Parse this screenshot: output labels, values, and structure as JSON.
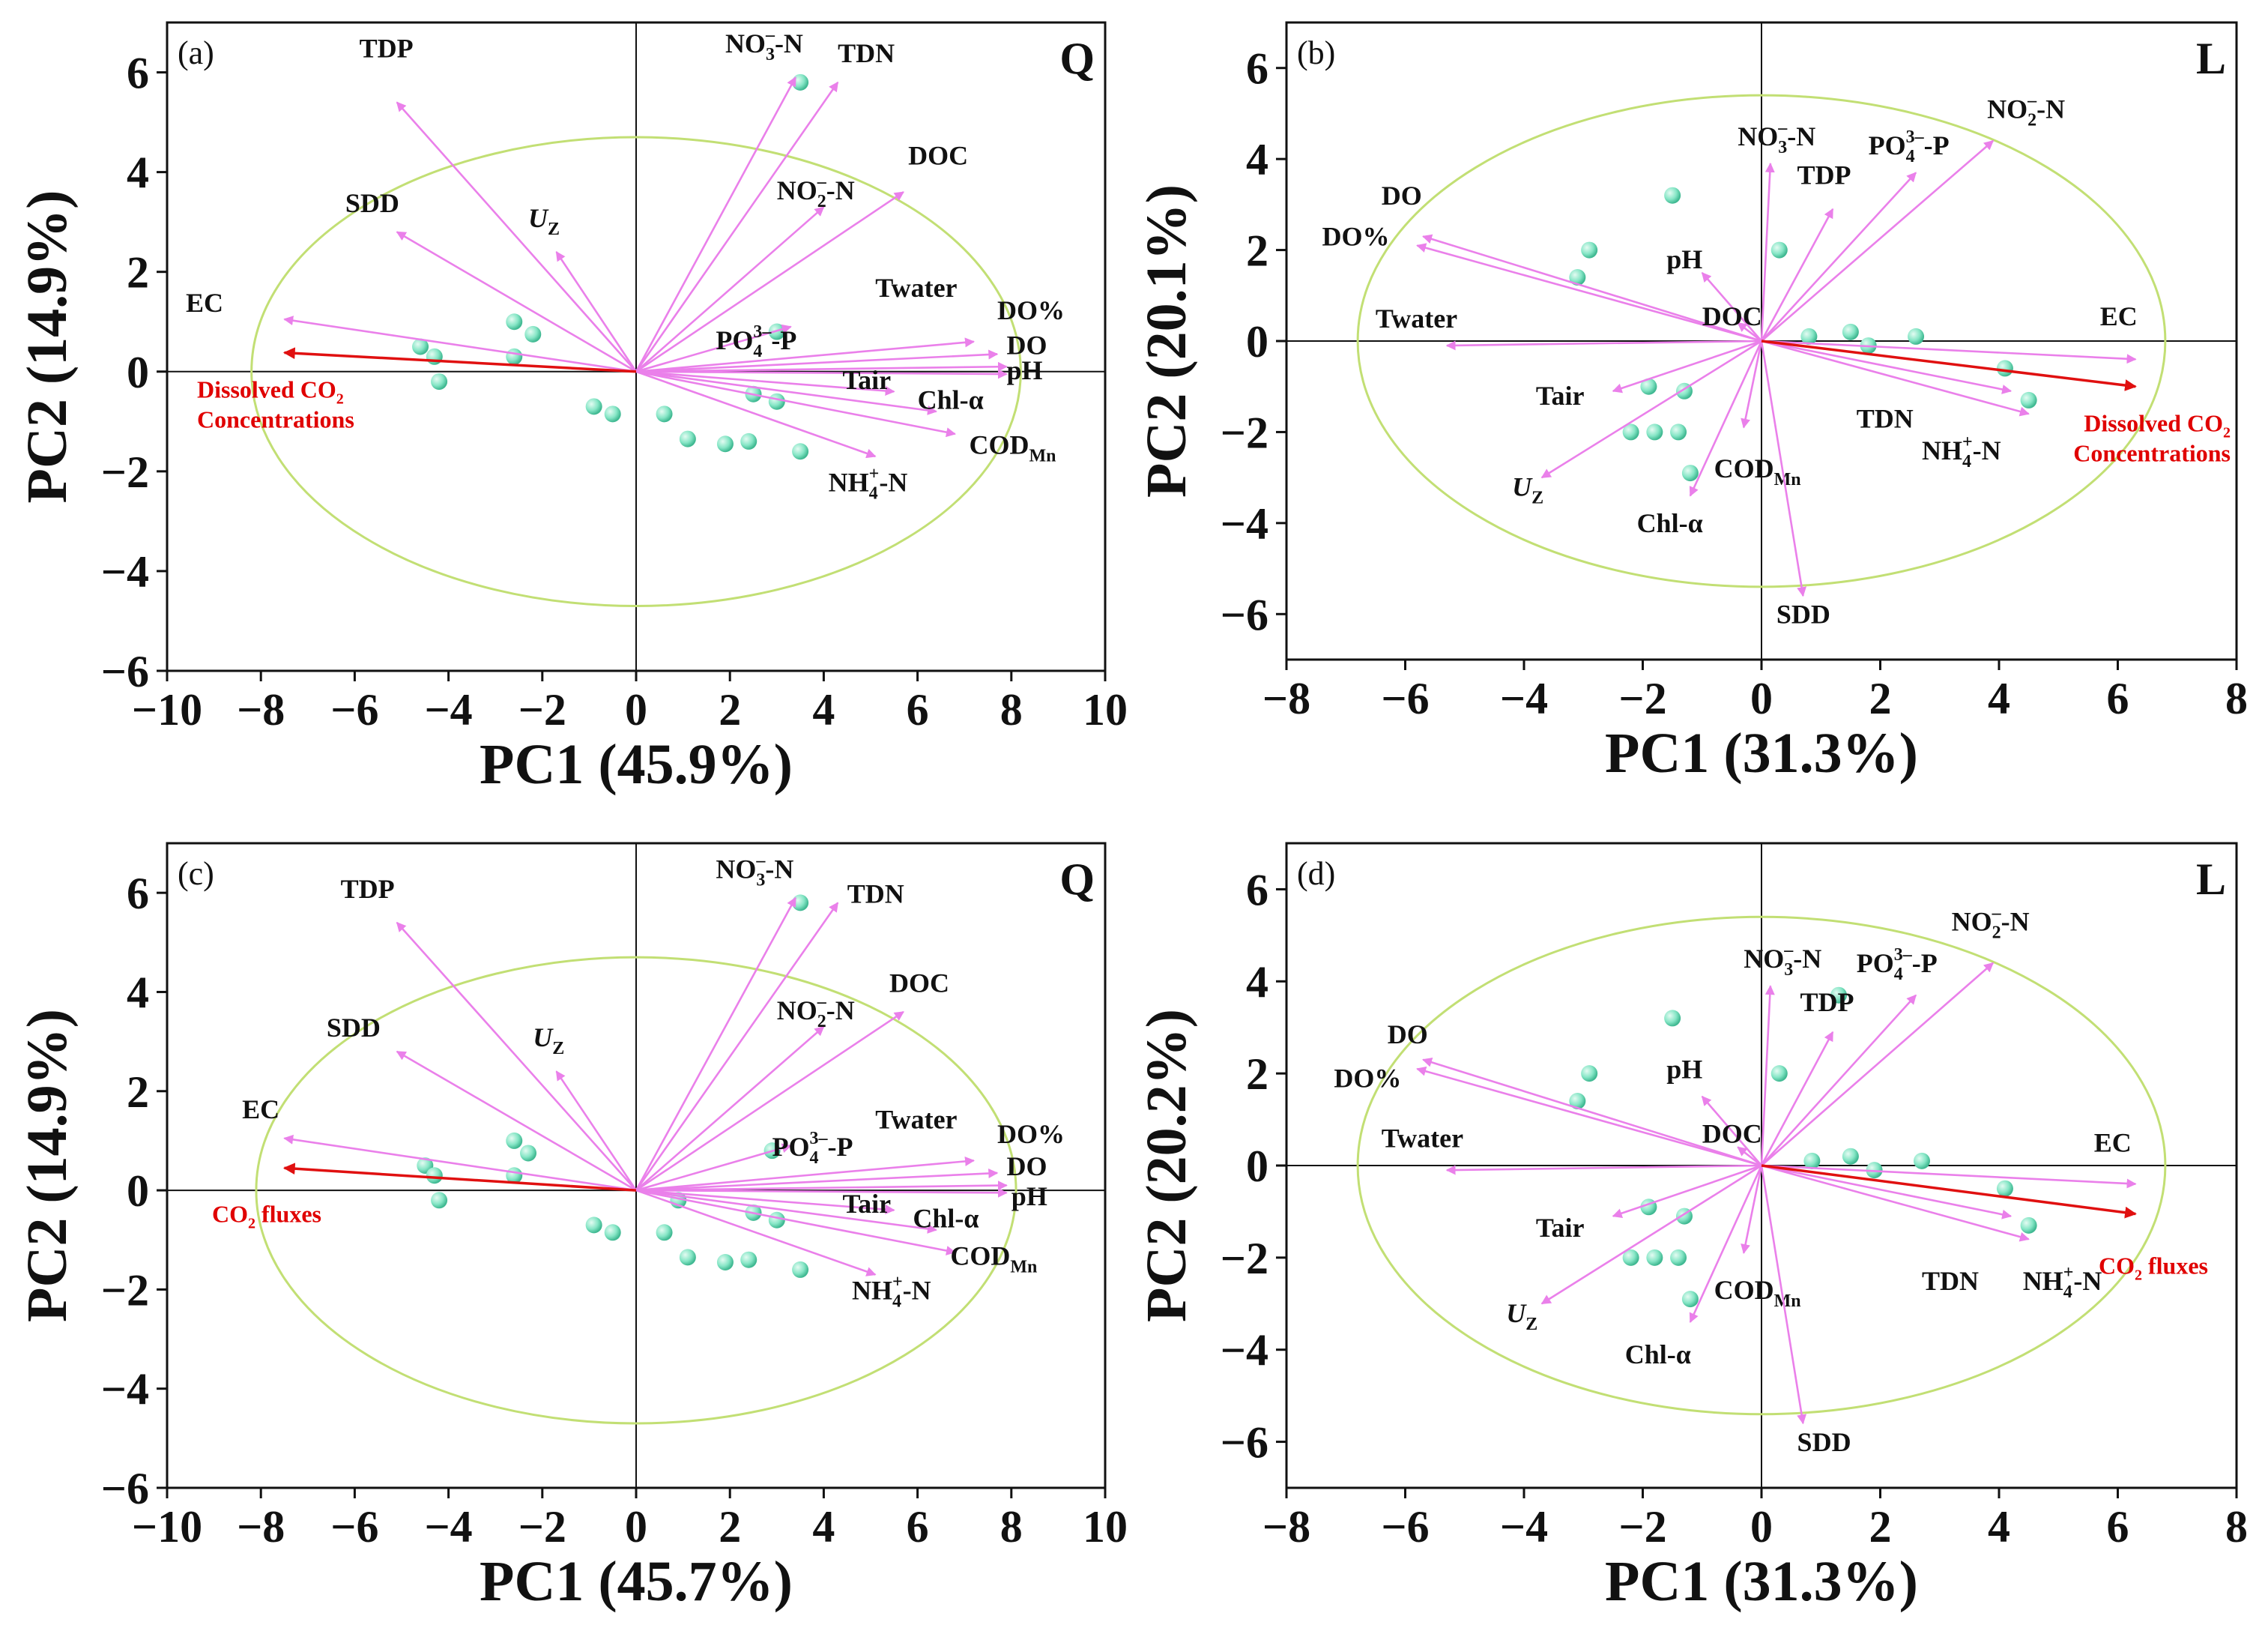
{
  "colors": {
    "arrow": "#ea80ea",
    "target": "#e01010",
    "ellipse": "#c2df74",
    "point": "#86e6c6",
    "axis": "#111111"
  },
  "chart_data": [
    {
      "type": "scatter",
      "panel": "(a)",
      "site": "Q",
      "xlabel": "PC1 (45.9%)",
      "ylabel": "PC2 (14.9%)",
      "xlim": [
        -10,
        10
      ],
      "ylim": [
        -6,
        7
      ],
      "xticks": [
        -10,
        -8,
        -6,
        -4,
        -2,
        0,
        2,
        4,
        6,
        8,
        10
      ],
      "yticks": [
        -6,
        -4,
        -2,
        0,
        2,
        4,
        6
      ],
      "ellipse": {
        "cx": 0,
        "cy": 0,
        "rx": 8.2,
        "ry": 4.7
      },
      "points": [
        [
          -4.6,
          0.5
        ],
        [
          -4.3,
          0.3
        ],
        [
          -4.2,
          -0.2
        ],
        [
          -2.6,
          0.3
        ],
        [
          -2.6,
          1.0
        ],
        [
          -2.2,
          0.75
        ],
        [
          -0.9,
          -0.7
        ],
        [
          -0.5,
          -0.85
        ],
        [
          0.6,
          -0.85
        ],
        [
          1.1,
          -1.35
        ],
        [
          1.9,
          -1.45
        ],
        [
          2.4,
          -1.4
        ],
        [
          3.5,
          -1.6
        ],
        [
          2.5,
          -0.45
        ],
        [
          3.0,
          -0.6
        ],
        [
          3.0,
          0.8
        ],
        [
          3.5,
          5.8
        ]
      ],
      "variables": [
        {
          "name": "TDP",
          "x": -5.1,
          "y": 5.4,
          "lx": -5.9,
          "ly": 6.3
        },
        {
          "name": "SDD",
          "x": -5.1,
          "y": 2.8,
          "lx": -6.2,
          "ly": 3.2
        },
        {
          "name": "Uz",
          "x": -1.7,
          "y": 2.4,
          "lx": -2.3,
          "ly": 2.9
        },
        {
          "name": "EC",
          "x": -7.5,
          "y": 1.05,
          "lx": -9.6,
          "ly": 1.2
        },
        {
          "name": "NO3–N",
          "x": 3.4,
          "y": 5.9,
          "lx": 1.9,
          "ly": 6.4
        },
        {
          "name": "TDN",
          "x": 4.3,
          "y": 5.8,
          "lx": 4.3,
          "ly": 6.2
        },
        {
          "name": "DOC",
          "x": 5.7,
          "y": 3.6,
          "lx": 5.8,
          "ly": 4.15
        },
        {
          "name": "NO2–N",
          "x": 4.0,
          "y": 3.3,
          "lx": 3.0,
          "ly": 3.45
        },
        {
          "name": "Twater",
          "x": 7.2,
          "y": 0.6,
          "lx": 5.1,
          "ly": 1.5
        },
        {
          "name": "DO%",
          "x": 7.7,
          "y": 0.35,
          "lx": 7.7,
          "ly": 1.05
        },
        {
          "name": "DO",
          "x": 7.9,
          "y": 0.1,
          "lx": 7.9,
          "ly": 0.35
        },
        {
          "name": "pH",
          "x": 7.9,
          "y": -0.05,
          "lx": 7.9,
          "ly": -0.15
        },
        {
          "name": "PO4–P",
          "x": 3.3,
          "y": 0.9,
          "lx": 1.7,
          "ly": 0.45
        },
        {
          "name": "Tair",
          "x": 5.5,
          "y": -0.4,
          "lx": 4.4,
          "ly": -0.35
        },
        {
          "name": "Chl-α",
          "x": 6.4,
          "y": -0.8,
          "lx": 6.0,
          "ly": -0.75
        },
        {
          "name": "CODMn",
          "x": 6.8,
          "y": -1.25,
          "lx": 7.1,
          "ly": -1.65
        },
        {
          "name": "NH4–N",
          "x": 5.1,
          "y": -1.7,
          "lx": 4.1,
          "ly": -2.4
        }
      ],
      "target": {
        "x": -7.5,
        "y": 0.38
      },
      "target_label": [
        "Dissolved CO2",
        "Concentrations"
      ]
    },
    {
      "type": "scatter",
      "panel": "(b)",
      "site": "L",
      "xlabel": "PC1 (31.3%)",
      "ylabel": "PC2 (20.1%)",
      "xlim": [
        -8,
        8
      ],
      "ylim": [
        -7,
        7
      ],
      "xticks": [
        -8,
        -6,
        -4,
        -2,
        0,
        2,
        4,
        6,
        8
      ],
      "yticks": [
        -6,
        -4,
        -2,
        0,
        2,
        4,
        6
      ],
      "ellipse": {
        "cx": 0,
        "cy": 0,
        "rx": 6.8,
        "ry": 5.4
      },
      "points": [
        [
          -3.1,
          1.4
        ],
        [
          -2.9,
          2.0
        ],
        [
          -1.5,
          3.2
        ],
        [
          0.3,
          2.0
        ],
        [
          0.8,
          0.1
        ],
        [
          1.5,
          0.2
        ],
        [
          1.8,
          -0.1
        ],
        [
          2.6,
          0.1
        ],
        [
          4.1,
          -0.6
        ],
        [
          4.5,
          -1.3
        ],
        [
          -1.9,
          -1.0
        ],
        [
          -1.3,
          -1.1
        ],
        [
          -2.2,
          -2.0
        ],
        [
          -1.8,
          -2.0
        ],
        [
          -1.4,
          -2.0
        ],
        [
          -1.2,
          -2.9
        ]
      ],
      "variables": [
        {
          "name": "DO",
          "x": -5.7,
          "y": 2.3,
          "lx": -6.4,
          "ly": 3.0
        },
        {
          "name": "DO%",
          "x": -5.8,
          "y": 2.1,
          "lx": -7.4,
          "ly": 2.1
        },
        {
          "name": "Twater",
          "x": -5.3,
          "y": -0.1,
          "lx": -6.5,
          "ly": 0.3
        },
        {
          "name": "pH",
          "x": -1.0,
          "y": 1.5,
          "lx": -1.6,
          "ly": 1.6
        },
        {
          "name": "DOC",
          "x": -0.4,
          "y": 0.4,
          "lx": -1.0,
          "ly": 0.35
        },
        {
          "name": "NO3–N",
          "x": 0.15,
          "y": 3.9,
          "lx": -0.4,
          "ly": 4.3
        },
        {
          "name": "TDP",
          "x": 1.2,
          "y": 2.9,
          "lx": 0.6,
          "ly": 3.45
        },
        {
          "name": "PO4–P",
          "x": 2.6,
          "y": 3.7,
          "lx": 1.8,
          "ly": 4.1
        },
        {
          "name": "NO2–N",
          "x": 3.9,
          "y": 4.4,
          "lx": 3.8,
          "ly": 4.9
        },
        {
          "name": "EC",
          "x": 6.3,
          "y": -0.4,
          "lx": 5.7,
          "ly": 0.35
        },
        {
          "name": "TDN",
          "x": 4.2,
          "y": -1.1,
          "lx": 1.6,
          "ly": -1.9
        },
        {
          "name": "NH4–N",
          "x": 4.5,
          "y": -1.6,
          "lx": 2.7,
          "ly": -2.6
        },
        {
          "name": "Tair",
          "x": -2.5,
          "y": -1.1,
          "lx": -3.8,
          "ly": -1.4
        },
        {
          "name": "Uz",
          "x": -3.7,
          "y": -3.0,
          "lx": -4.2,
          "ly": -3.4
        },
        {
          "name": "CODMn",
          "x": -0.3,
          "y": -1.9,
          "lx": -0.8,
          "ly": -3.0
        },
        {
          "name": "Chl-α",
          "x": -1.2,
          "y": -3.4,
          "lx": -2.1,
          "ly": -4.2
        },
        {
          "name": "SDD",
          "x": 0.7,
          "y": -5.6,
          "lx": 0.25,
          "ly": -6.2
        }
      ],
      "target": {
        "x": 6.3,
        "y": -1.0
      },
      "target_label": [
        "Dissolved CO2",
        "Concentrations"
      ]
    },
    {
      "type": "scatter",
      "panel": "(c)",
      "site": "Q",
      "xlabel": "PC1 (45.7%)",
      "ylabel": "PC2 (14.9%)",
      "xlim": [
        -10,
        10
      ],
      "ylim": [
        -6,
        7
      ],
      "xticks": [
        -10,
        -8,
        -6,
        -4,
        -2,
        0,
        2,
        4,
        6,
        8,
        10
      ],
      "yticks": [
        -6,
        -4,
        -2,
        0,
        2,
        4,
        6
      ],
      "ellipse": {
        "cx": 0,
        "cy": 0,
        "rx": 8.1,
        "ry": 4.7
      },
      "points": [
        [
          -4.5,
          0.5
        ],
        [
          -4.3,
          0.3
        ],
        [
          -4.2,
          -0.2
        ],
        [
          -2.6,
          0.3
        ],
        [
          -2.6,
          1.0
        ],
        [
          -2.3,
          0.75
        ],
        [
          -0.9,
          -0.7
        ],
        [
          -0.5,
          -0.85
        ],
        [
          0.6,
          -0.85
        ],
        [
          1.1,
          -1.35
        ],
        [
          1.9,
          -1.45
        ],
        [
          2.4,
          -1.4
        ],
        [
          3.5,
          -1.6
        ],
        [
          2.5,
          -0.45
        ],
        [
          3.0,
          -0.6
        ],
        [
          2.9,
          0.8
        ],
        [
          3.5,
          5.8
        ],
        [
          0.9,
          -0.2
        ]
      ],
      "variables": [
        {
          "name": "TDP",
          "x": -5.1,
          "y": 5.4,
          "lx": -6.3,
          "ly": 5.9
        },
        {
          "name": "SDD",
          "x": -5.1,
          "y": 2.8,
          "lx": -6.6,
          "ly": 3.1
        },
        {
          "name": "Uz",
          "x": -1.7,
          "y": 2.4,
          "lx": -2.2,
          "ly": 2.9
        },
        {
          "name": "EC",
          "x": -7.5,
          "y": 1.05,
          "lx": -8.4,
          "ly": 1.45
        },
        {
          "name": "NO3–N",
          "x": 3.4,
          "y": 5.9,
          "lx": 1.7,
          "ly": 6.3
        },
        {
          "name": "TDN",
          "x": 4.3,
          "y": 5.8,
          "lx": 4.5,
          "ly": 5.8
        },
        {
          "name": "DOC",
          "x": 5.7,
          "y": 3.6,
          "lx": 5.4,
          "ly": 4.0
        },
        {
          "name": "NO2–N",
          "x": 4.0,
          "y": 3.3,
          "lx": 3.0,
          "ly": 3.45
        },
        {
          "name": "Twater",
          "x": 7.2,
          "y": 0.6,
          "lx": 5.1,
          "ly": 1.25
        },
        {
          "name": "DO%",
          "x": 7.7,
          "y": 0.35,
          "lx": 7.7,
          "ly": 0.95
        },
        {
          "name": "DO",
          "x": 7.9,
          "y": 0.1,
          "lx": 7.9,
          "ly": 0.3
        },
        {
          "name": "pH",
          "x": 7.9,
          "y": -0.05,
          "lx": 8.0,
          "ly": -0.3
        },
        {
          "name": "PO4–P",
          "x": 3.3,
          "y": 0.9,
          "lx": 2.9,
          "ly": 0.7
        },
        {
          "name": "Tair",
          "x": 5.5,
          "y": -0.4,
          "lx": 4.4,
          "ly": -0.45
        },
        {
          "name": "Chl-α",
          "x": 6.4,
          "y": -0.8,
          "lx": 5.9,
          "ly": -0.75
        },
        {
          "name": "CODMn",
          "x": 6.8,
          "y": -1.25,
          "lx": 6.7,
          "ly": -1.5
        },
        {
          "name": "NH4–N",
          "x": 5.1,
          "y": -1.7,
          "lx": 4.6,
          "ly": -2.2
        }
      ],
      "target": {
        "x": -7.5,
        "y": 0.45
      },
      "target_label": [
        "CO2 fluxes"
      ]
    },
    {
      "type": "scatter",
      "panel": "(d)",
      "site": "L",
      "xlabel": "PC1 (31.3%)",
      "ylabel": "PC2 (20.2%)",
      "xlim": [
        -8,
        8
      ],
      "ylim": [
        -7,
        7
      ],
      "xticks": [
        -8,
        -6,
        -4,
        -2,
        0,
        2,
        4,
        6,
        8
      ],
      "yticks": [
        -6,
        -4,
        -2,
        0,
        2,
        4,
        6
      ],
      "ellipse": {
        "cx": 0,
        "cy": 0,
        "rx": 6.8,
        "ry": 5.4
      },
      "points": [
        [
          -3.1,
          1.4
        ],
        [
          -2.9,
          2.0
        ],
        [
          -1.5,
          3.2
        ],
        [
          0.3,
          2.0
        ],
        [
          0.85,
          0.1
        ],
        [
          1.5,
          0.2
        ],
        [
          1.9,
          -0.1
        ],
        [
          2.7,
          0.1
        ],
        [
          4.1,
          -0.5
        ],
        [
          4.5,
          -1.3
        ],
        [
          -1.9,
          -0.9
        ],
        [
          -1.3,
          -1.1
        ],
        [
          -2.2,
          -2.0
        ],
        [
          -1.8,
          -2.0
        ],
        [
          -1.4,
          -2.0
        ],
        [
          -1.2,
          -2.9
        ],
        [
          1.3,
          3.7
        ]
      ],
      "variables": [
        {
          "name": "DO",
          "x": -5.7,
          "y": 2.3,
          "lx": -6.3,
          "ly": 2.65
        },
        {
          "name": "DO%",
          "x": -5.8,
          "y": 2.1,
          "lx": -7.2,
          "ly": 1.7
        },
        {
          "name": "Twater",
          "x": -5.3,
          "y": -0.1,
          "lx": -6.4,
          "ly": 0.4
        },
        {
          "name": "pH",
          "x": -1.0,
          "y": 1.5,
          "lx": -1.6,
          "ly": 1.9
        },
        {
          "name": "DOC",
          "x": -0.4,
          "y": 0.4,
          "lx": -1.0,
          "ly": 0.5
        },
        {
          "name": "NO3–N",
          "x": 0.15,
          "y": 3.9,
          "lx": -0.3,
          "ly": 4.3
        },
        {
          "name": "TDP",
          "x": 1.2,
          "y": 2.9,
          "lx": 0.65,
          "ly": 3.35
        },
        {
          "name": "PO4–P",
          "x": 2.6,
          "y": 3.7,
          "lx": 1.6,
          "ly": 4.2
        },
        {
          "name": "NO2–N",
          "x": 3.9,
          "y": 4.4,
          "lx": 3.2,
          "ly": 5.1
        },
        {
          "name": "EC",
          "x": 6.3,
          "y": -0.4,
          "lx": 5.6,
          "ly": 0.3
        },
        {
          "name": "TDN",
          "x": 4.2,
          "y": -1.1,
          "lx": 2.7,
          "ly": -2.7
        },
        {
          "name": "NH4–N",
          "x": 4.5,
          "y": -1.6,
          "lx": 4.4,
          "ly": -2.7
        },
        {
          "name": "Tair",
          "x": -2.5,
          "y": -1.1,
          "lx": -3.8,
          "ly": -1.55
        },
        {
          "name": "Uz",
          "x": -3.7,
          "y": -3.0,
          "lx": -4.3,
          "ly": -3.4
        },
        {
          "name": "CODMn",
          "x": -0.3,
          "y": -1.9,
          "lx": -0.8,
          "ly": -2.9
        },
        {
          "name": "Chl-α",
          "x": -1.2,
          "y": -3.4,
          "lx": -2.3,
          "ly": -4.3
        },
        {
          "name": "SDD",
          "x": 0.7,
          "y": -5.6,
          "lx": 0.6,
          "ly": -6.2
        }
      ],
      "target": {
        "x": 6.3,
        "y": -1.05
      },
      "target_label": [
        "CO2 fluxes"
      ]
    }
  ]
}
